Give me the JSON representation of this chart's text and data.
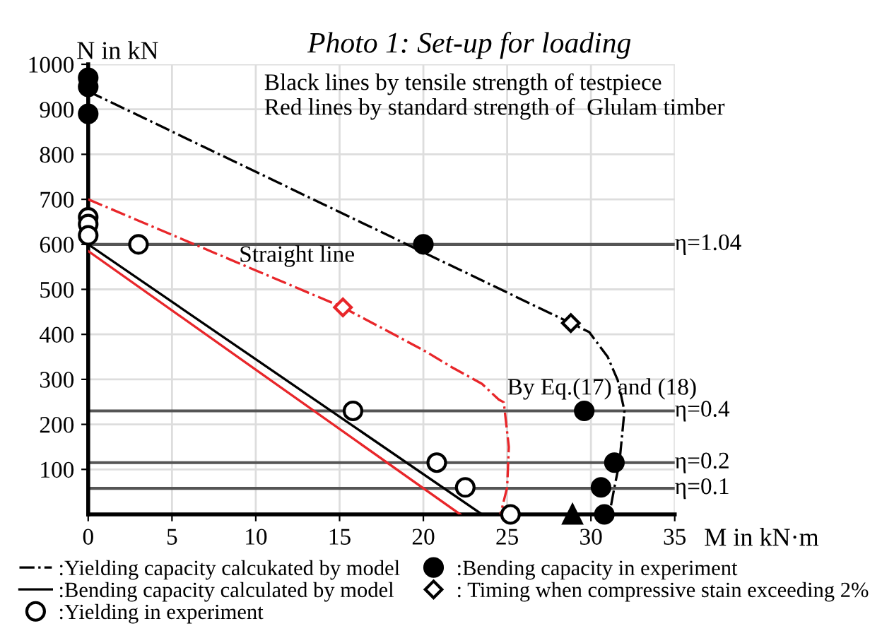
{
  "chart_data": {
    "type": "scatter",
    "title": "Photo 1: Set-up for loading",
    "xlabel": "M in kN·m",
    "ylabel": "N in kN",
    "annotations": [
      "Black lines by tensile strength of testpiece",
      "Red lines by standard strength of  Glulam timber",
      {
        "text": "Straight line",
        "x": 9,
        "y": 550
      },
      {
        "text": "By Eq.(17) and (18)",
        "x": 25,
        "y": 255
      },
      {
        "text": "η=1.04",
        "x": 35,
        "y": 600
      },
      {
        "text": "η=0.4",
        "x": 35,
        "y": 230
      },
      {
        "text": "η=0.2",
        "x": 35,
        "y": 115
      },
      {
        "text": "η=0.1",
        "x": 35,
        "y": 58
      }
    ],
    "xlim": [
      0,
      35
    ],
    "ylim": [
      0,
      1000
    ],
    "xticks": [
      0,
      5,
      10,
      15,
      20,
      25,
      30,
      35
    ],
    "yticks": [
      100,
      200,
      300,
      400,
      500,
      600,
      700,
      800,
      900,
      1000
    ],
    "grid": true,
    "legend": "bottom",
    "ref_lines": [
      {
        "axis": "y",
        "value": 600,
        "color": "#555555"
      },
      {
        "axis": "y",
        "value": 230,
        "color": "#555555"
      },
      {
        "axis": "y",
        "value": 115,
        "color": "#555555"
      },
      {
        "axis": "y",
        "value": 58,
        "color": "#555555"
      }
    ],
    "series": [
      {
        "name": ":Yielding capacity calcukated by model",
        "type": "line",
        "line_style": "dashdot",
        "marker": "none",
        "color": "#000000",
        "x": [
          0,
          28.8,
          29.9,
          31.0,
          31.6,
          32.0,
          31.7,
          31.4,
          31.1
        ],
        "values": [
          940,
          425,
          405,
          350,
          298,
          230,
          115,
          60,
          0
        ]
      },
      {
        "type": "line",
        "line_style": "dashdot",
        "marker": "none",
        "color": "#e8262a",
        "x": [
          0,
          15.2,
          20.0,
          21.7,
          23.5,
          24.5,
          24.8,
          25.1,
          25.0,
          24.6
        ],
        "values": [
          700,
          460,
          365,
          327,
          290,
          255,
          249,
          150,
          60,
          0
        ]
      },
      {
        "name": ":Bending capacity calculated by model",
        "type": "line",
        "line_style": "solid",
        "marker": "none",
        "color": "#000000",
        "x": [
          0,
          23.5
        ],
        "values": [
          600,
          0
        ]
      },
      {
        "type": "line",
        "line_style": "solid",
        "marker": "none",
        "color": "#e8262a",
        "x": [
          0,
          22.2
        ],
        "values": [
          585,
          0
        ]
      },
      {
        "name": ":Yielding in experiment",
        "marker": "circle",
        "color": "#ffffff",
        "x": [
          0,
          0,
          0,
          3,
          15.8,
          20.8,
          22.5,
          25.2
        ],
        "values": [
          660,
          645,
          620,
          600,
          230,
          115,
          60,
          0
        ]
      },
      {
        "name": ":Bending capacity in experiment",
        "marker": "circle",
        "color": "#000000",
        "x": [
          0,
          0,
          0,
          20,
          29.6,
          31.4,
          30.6,
          30.8
        ],
        "values": [
          970,
          950,
          890,
          600,
          230,
          115,
          60,
          0
        ]
      },
      {
        "name": ": Timing when compressive stain exceeding 2%",
        "marker": "diamond",
        "color": "#000000",
        "x": [
          28.8
        ],
        "values": [
          425
        ]
      },
      {
        "marker": "diamond",
        "color": "#e8262a",
        "x": [
          15.2
        ],
        "values": [
          460
        ]
      },
      {
        "marker": "triangle",
        "color": "#000000",
        "x": [
          28.9
        ],
        "values": [
          0
        ]
      }
    ]
  }
}
